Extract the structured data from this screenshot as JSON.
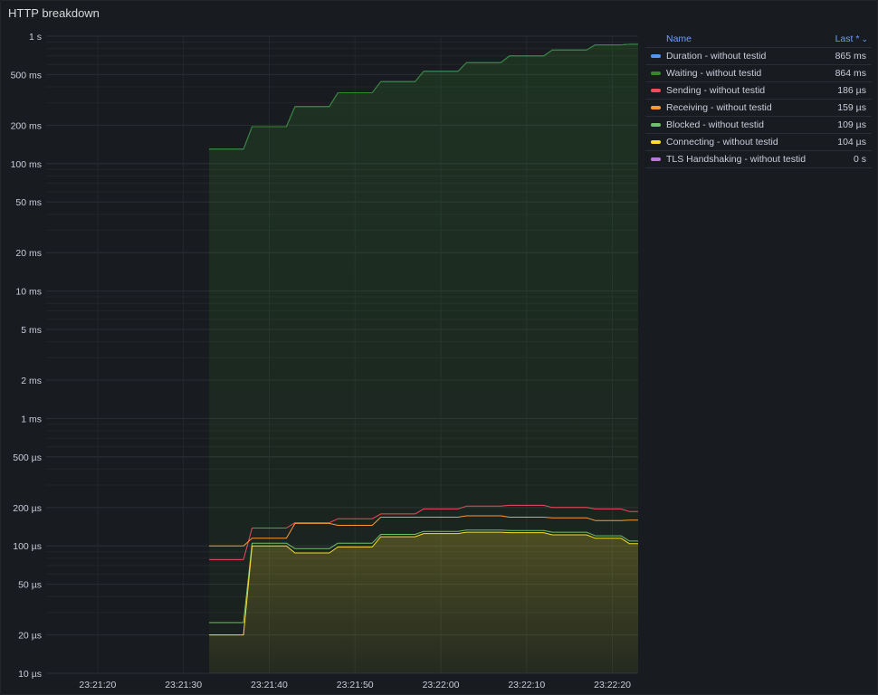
{
  "panel": {
    "title": "HTTP breakdown"
  },
  "legend": {
    "name_header": "Name",
    "last_header": "Last *",
    "sort_icon": "chevron-down-icon",
    "items": [
      {
        "name": "Duration - without testid",
        "last": "865 ms",
        "color": "#5794f2"
      },
      {
        "name": "Waiting - without testid",
        "last": "864 ms",
        "color": "#37872d"
      },
      {
        "name": "Sending - without testid",
        "last": "186 µs",
        "color": "#f2495c"
      },
      {
        "name": "Receiving - without testid",
        "last": "159 µs",
        "color": "#ff9830"
      },
      {
        "name": "Blocked - without testid",
        "last": "109 µs",
        "color": "#73bf69"
      },
      {
        "name": "Connecting - without testid",
        "last": "104 µs",
        "color": "#fade2a"
      },
      {
        "name": "TLS Handshaking - without testid",
        "last": "0 s",
        "color": "#b877d9"
      }
    ]
  },
  "chart_data": {
    "type": "line",
    "yscale": "log",
    "y_unit": "seconds",
    "ylim": [
      1e-05,
      1
    ],
    "xlim": [
      "23:21:14",
      "23:22:23"
    ],
    "x_ticks": [
      "23:21:20",
      "23:21:30",
      "23:21:40",
      "23:21:50",
      "23:22:00",
      "23:22:10",
      "23:22:20"
    ],
    "y_ticks": [
      {
        "value": 1,
        "label": "1 s"
      },
      {
        "value": 0.5,
        "label": "500 ms"
      },
      {
        "value": 0.2,
        "label": "200 ms"
      },
      {
        "value": 0.1,
        "label": "100 ms"
      },
      {
        "value": 0.05,
        "label": "50 ms"
      },
      {
        "value": 0.02,
        "label": "20 ms"
      },
      {
        "value": 0.01,
        "label": "10 ms"
      },
      {
        "value": 0.005,
        "label": "5 ms"
      },
      {
        "value": 0.002,
        "label": "2 ms"
      },
      {
        "value": 0.001,
        "label": "1 ms"
      },
      {
        "value": 0.0005,
        "label": "500 µs"
      },
      {
        "value": 0.0002,
        "label": "200 µs"
      },
      {
        "value": 0.0001,
        "label": "100 µs"
      },
      {
        "value": 5e-05,
        "label": "50 µs"
      },
      {
        "value": 2e-05,
        "label": "20 µs"
      },
      {
        "value": 1e-05,
        "label": "10 µs"
      }
    ],
    "series": [
      {
        "name": "Duration - without testid",
        "color": "#5794f2",
        "fill": false,
        "points": [
          [
            "23:21:33",
            0.13
          ],
          [
            "23:21:37",
            0.13
          ],
          [
            "23:21:38",
            0.195
          ],
          [
            "23:21:42",
            0.195
          ],
          [
            "23:21:43",
            0.28
          ],
          [
            "23:21:47",
            0.28
          ],
          [
            "23:21:48",
            0.36
          ],
          [
            "23:21:52",
            0.36
          ],
          [
            "23:21:53",
            0.44
          ],
          [
            "23:21:57",
            0.44
          ],
          [
            "23:21:58",
            0.53
          ],
          [
            "23:22:02",
            0.53
          ],
          [
            "23:22:03",
            0.62
          ],
          [
            "23:22:07",
            0.62
          ],
          [
            "23:22:08",
            0.7
          ],
          [
            "23:22:12",
            0.7
          ],
          [
            "23:22:13",
            0.78
          ],
          [
            "23:22:17",
            0.78
          ],
          [
            "23:22:18",
            0.855
          ],
          [
            "23:22:21",
            0.855
          ],
          [
            "23:22:22",
            0.865
          ],
          [
            "23:22:23",
            0.865
          ]
        ]
      },
      {
        "name": "Waiting - without testid",
        "color": "#37872d",
        "fill": true,
        "points": [
          [
            "23:21:33",
            0.13
          ],
          [
            "23:21:37",
            0.13
          ],
          [
            "23:21:38",
            0.195
          ],
          [
            "23:21:42",
            0.195
          ],
          [
            "23:21:43",
            0.28
          ],
          [
            "23:21:47",
            0.28
          ],
          [
            "23:21:48",
            0.36
          ],
          [
            "23:21:52",
            0.36
          ],
          [
            "23:21:53",
            0.44
          ],
          [
            "23:21:57",
            0.44
          ],
          [
            "23:21:58",
            0.53
          ],
          [
            "23:22:02",
            0.53
          ],
          [
            "23:22:03",
            0.62
          ],
          [
            "23:22:07",
            0.62
          ],
          [
            "23:22:08",
            0.7
          ],
          [
            "23:22:12",
            0.7
          ],
          [
            "23:22:13",
            0.78
          ],
          [
            "23:22:17",
            0.78
          ],
          [
            "23:22:18",
            0.855
          ],
          [
            "23:22:21",
            0.855
          ],
          [
            "23:22:22",
            0.864
          ],
          [
            "23:22:23",
            0.864
          ]
        ]
      },
      {
        "name": "Sending - without testid",
        "color": "#f2495c",
        "fill": false,
        "points": [
          [
            "23:21:33",
            7.8e-05
          ],
          [
            "23:21:37",
            7.8e-05
          ],
          [
            "23:21:38",
            0.000138
          ],
          [
            "23:21:42",
            0.000138
          ],
          [
            "23:21:43",
            0.000152
          ],
          [
            "23:21:47",
            0.000152
          ],
          [
            "23:21:48",
            0.000163
          ],
          [
            "23:21:52",
            0.000163
          ],
          [
            "23:21:53",
            0.000178
          ],
          [
            "23:21:57",
            0.000178
          ],
          [
            "23:21:58",
            0.000195
          ],
          [
            "23:22:02",
            0.000195
          ],
          [
            "23:22:03",
            0.000205
          ],
          [
            "23:22:07",
            0.000205
          ],
          [
            "23:22:08",
            0.000208
          ],
          [
            "23:22:12",
            0.000208
          ],
          [
            "23:22:13",
            0.0002
          ],
          [
            "23:22:17",
            0.0002
          ],
          [
            "23:22:18",
            0.000195
          ],
          [
            "23:22:21",
            0.000195
          ],
          [
            "23:22:22",
            0.000186
          ],
          [
            "23:22:23",
            0.000186
          ]
        ]
      },
      {
        "name": "Receiving - without testid",
        "color": "#ff9830",
        "fill": false,
        "points": [
          [
            "23:21:33",
            0.0001
          ],
          [
            "23:21:37",
            0.0001
          ],
          [
            "23:21:38",
            0.000115
          ],
          [
            "23:21:42",
            0.000115
          ],
          [
            "23:21:43",
            0.00015
          ],
          [
            "23:21:47",
            0.00015
          ],
          [
            "23:21:48",
            0.000145
          ],
          [
            "23:21:52",
            0.000145
          ],
          [
            "23:21:53",
            0.000168
          ],
          [
            "23:21:57",
            0.000168
          ],
          [
            "23:22:02",
            0.000168
          ],
          [
            "23:22:03",
            0.000172
          ],
          [
            "23:22:07",
            0.000172
          ],
          [
            "23:22:08",
            0.000168
          ],
          [
            "23:22:12",
            0.000168
          ],
          [
            "23:22:13",
            0.000166
          ],
          [
            "23:22:17",
            0.000166
          ],
          [
            "23:22:18",
            0.000158
          ],
          [
            "23:22:21",
            0.000158
          ],
          [
            "23:22:22",
            0.000159
          ],
          [
            "23:22:23",
            0.000159
          ]
        ]
      },
      {
        "name": "Blocked - without testid",
        "color": "#73bf69",
        "fill": false,
        "points": [
          [
            "23:21:33",
            2.5e-05
          ],
          [
            "23:21:37",
            2.5e-05
          ],
          [
            "23:21:38",
            0.000105
          ],
          [
            "23:21:42",
            0.000105
          ],
          [
            "23:21:43",
            9.5e-05
          ],
          [
            "23:21:47",
            9.5e-05
          ],
          [
            "23:21:48",
            0.000105
          ],
          [
            "23:21:52",
            0.000105
          ],
          [
            "23:21:53",
            0.000123
          ],
          [
            "23:21:57",
            0.000123
          ],
          [
            "23:21:58",
            0.00013
          ],
          [
            "23:22:02",
            0.00013
          ],
          [
            "23:22:03",
            0.000133
          ],
          [
            "23:22:07",
            0.000133
          ],
          [
            "23:22:08",
            0.000132
          ],
          [
            "23:22:12",
            0.000132
          ],
          [
            "23:22:13",
            0.000128
          ],
          [
            "23:22:17",
            0.000128
          ],
          [
            "23:22:18",
            0.00012
          ],
          [
            "23:22:21",
            0.00012
          ],
          [
            "23:22:22",
            0.000109
          ],
          [
            "23:22:23",
            0.000109
          ]
        ]
      },
      {
        "name": "Connecting - without testid",
        "color": "#fade2a",
        "fill": true,
        "points": [
          [
            "23:21:33",
            2e-05
          ],
          [
            "23:21:37",
            2e-05
          ],
          [
            "23:21:38",
            0.0001
          ],
          [
            "23:21:42",
            0.0001
          ],
          [
            "23:21:43",
            8.8e-05
          ],
          [
            "23:21:47",
            8.8e-05
          ],
          [
            "23:21:48",
            9.8e-05
          ],
          [
            "23:21:52",
            9.8e-05
          ],
          [
            "23:21:53",
            0.000118
          ],
          [
            "23:21:57",
            0.000118
          ],
          [
            "23:21:58",
            0.000125
          ],
          [
            "23:22:02",
            0.000125
          ],
          [
            "23:22:03",
            0.000128
          ],
          [
            "23:22:07",
            0.000128
          ],
          [
            "23:22:08",
            0.000127
          ],
          [
            "23:22:12",
            0.000127
          ],
          [
            "23:22:13",
            0.000122
          ],
          [
            "23:22:17",
            0.000122
          ],
          [
            "23:22:18",
            0.000115
          ],
          [
            "23:22:21",
            0.000115
          ],
          [
            "23:22:22",
            0.000104
          ],
          [
            "23:22:23",
            0.000104
          ]
        ]
      },
      {
        "name": "TLS Handshaking - without testid",
        "color": "#b877d9",
        "fill": false,
        "points": []
      }
    ]
  }
}
